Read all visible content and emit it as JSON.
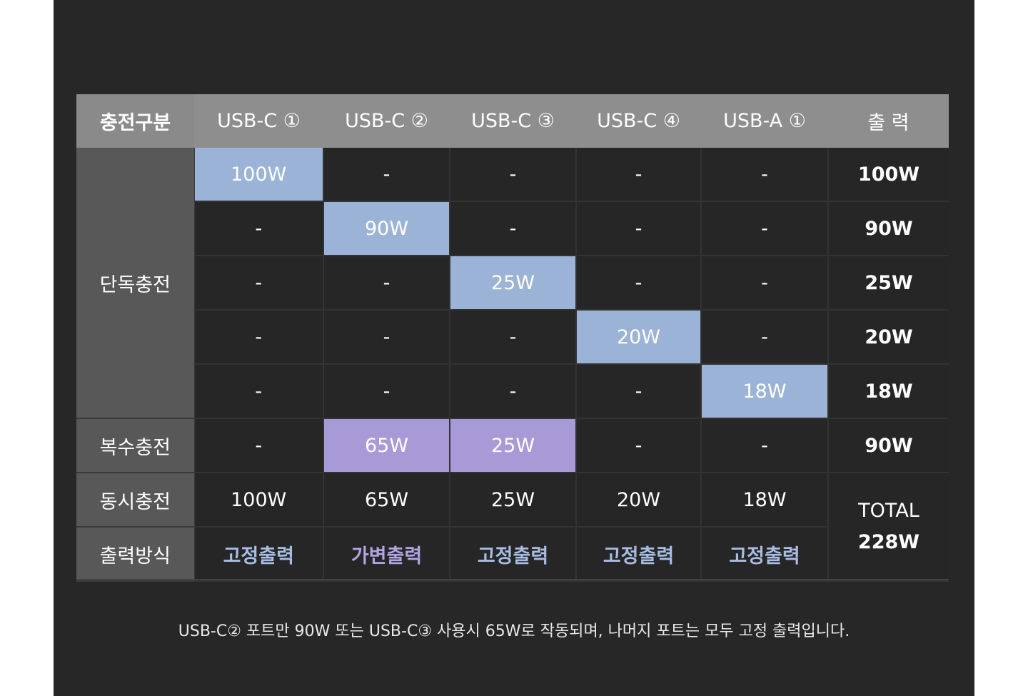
{
  "top_caption": "",
  "table": {
    "headers": [
      "충전구분",
      "USB-C ①",
      "USB-C ②",
      "USB-C ③",
      "USB-C ④",
      "USB-A ①",
      "출 력"
    ],
    "groups": {
      "single": "단독충전",
      "multi": "복수충전",
      "simultaneous": "동시충전",
      "mode": "출력방식"
    },
    "single_rows": [
      [
        "100W",
        "-",
        "-",
        "-",
        "-",
        "100W"
      ],
      [
        "-",
        "90W",
        "-",
        "-",
        "-",
        "90W"
      ],
      [
        "-",
        "-",
        "25W",
        "-",
        "-",
        "25W"
      ],
      [
        "-",
        "-",
        "-",
        "20W",
        "-",
        "20W"
      ],
      [
        "-",
        "-",
        "-",
        "-",
        "18W",
        "18W"
      ]
    ],
    "multi_row": [
      "-",
      "65W",
      "25W",
      "-",
      "-",
      "90W"
    ],
    "simultaneous_row": [
      "100W",
      "65W",
      "25W",
      "20W",
      "18W"
    ],
    "mode_row": [
      "고정출력",
      "가변출력",
      "고정출력",
      "고정출력",
      "고정출력"
    ],
    "total_label": "TOTAL",
    "total_value": "228W"
  },
  "footnote": "USB-C② 포트만 90W 또는 USB-C③ 사용시 65W로 작동되며, 나머지 포트는 모두 고정 출력입니다.",
  "colors": {
    "panel_bg": "#272727",
    "header_bg": "#8e8e8e",
    "row_head_bg": "#585858",
    "highlight_single": "#9bb3d6",
    "highlight_multi": "#a79ad6",
    "fixed_text": "#a7bde3",
    "variable_text": "#b3a4e3"
  }
}
